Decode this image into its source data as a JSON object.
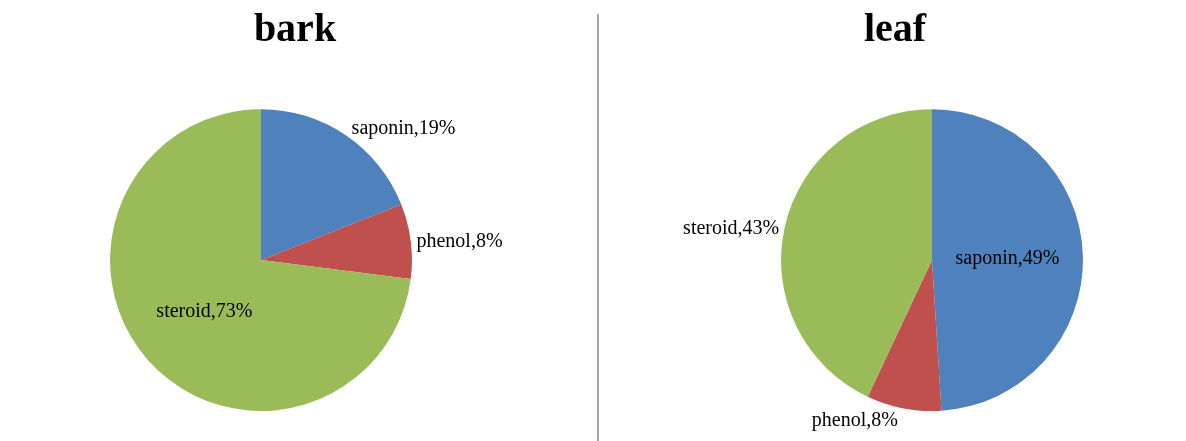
{
  "chart_data": [
    {
      "type": "pie",
      "title": "bark",
      "categories": [
        "saponin",
        "phenol",
        "steroid"
      ],
      "values": [
        19,
        8,
        73
      ],
      "colors": [
        "#4f81bd",
        "#c0504d",
        "#9bbb59"
      ],
      "value_labels": [
        "19%",
        "8%",
        "73%"
      ],
      "legend": false
    },
    {
      "type": "pie",
      "title": "leaf",
      "categories": [
        "saponin",
        "phenol",
        "steroid"
      ],
      "values": [
        49,
        8,
        43
      ],
      "colors": [
        "#4f81bd",
        "#c0504d",
        "#9bbb59"
      ],
      "value_labels": [
        "49%",
        "8%",
        "43%"
      ],
      "legend": false
    }
  ]
}
